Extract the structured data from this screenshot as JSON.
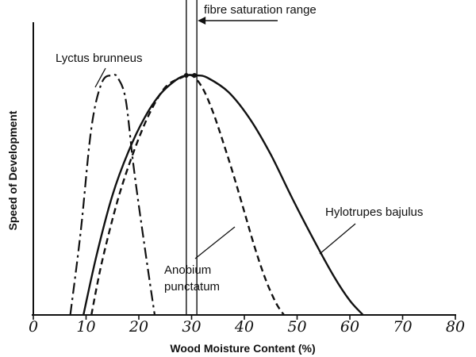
{
  "chart_data": {
    "type": "line",
    "title": "",
    "xlabel": "Wood Moisture Content (%)",
    "ylabel": "Speed of Development",
    "xlim": [
      0,
      80
    ],
    "ylim": [
      0,
      1
    ],
    "xticks": [
      "0",
      "10",
      "20",
      "30",
      "40",
      "50",
      "60",
      "70",
      "80"
    ],
    "grid": false,
    "series": [
      {
        "name": "Lyctus brunneus",
        "style": "dash-dot",
        "x": [
          7,
          9,
          11,
          13,
          15,
          16,
          17.5,
          19,
          21,
          23
        ],
        "y": [
          0,
          0.35,
          0.78,
          0.97,
          1.0,
          0.99,
          0.9,
          0.62,
          0.3,
          0
        ]
      },
      {
        "name": "Hylotrupes bajulus",
        "style": "solid",
        "x": [
          9.5,
          12,
          15,
          18,
          21,
          24,
          27,
          29,
          31,
          33,
          37,
          41,
          45,
          49,
          53,
          57,
          60,
          62.5
        ],
        "y": [
          0,
          0.25,
          0.5,
          0.68,
          0.82,
          0.92,
          0.98,
          1.0,
          1.0,
          0.99,
          0.93,
          0.82,
          0.67,
          0.49,
          0.32,
          0.16,
          0.06,
          0
        ]
      },
      {
        "name": "Anobium punctatum",
        "style": "dashed",
        "x": [
          11,
          13,
          16,
          19,
          22,
          25,
          28,
          30,
          32,
          34,
          36,
          38,
          40,
          42,
          44,
          46,
          47.5
        ],
        "y": [
          0,
          0.22,
          0.48,
          0.68,
          0.84,
          0.95,
          0.99,
          1.0,
          0.95,
          0.85,
          0.72,
          0.58,
          0.43,
          0.28,
          0.15,
          0.05,
          0
        ]
      }
    ],
    "annotations": {
      "fsr": {
        "text": "fibre saturation range",
        "x_start": 29,
        "x_end": 31
      },
      "lyctus": {
        "text": "Lyctus brunneus"
      },
      "hylotrupes": {
        "text": "Hylotrupes bajulus"
      },
      "anobium_line1": {
        "text": "Anobium"
      },
      "anobium_line2": {
        "text": "punctatum"
      }
    }
  }
}
